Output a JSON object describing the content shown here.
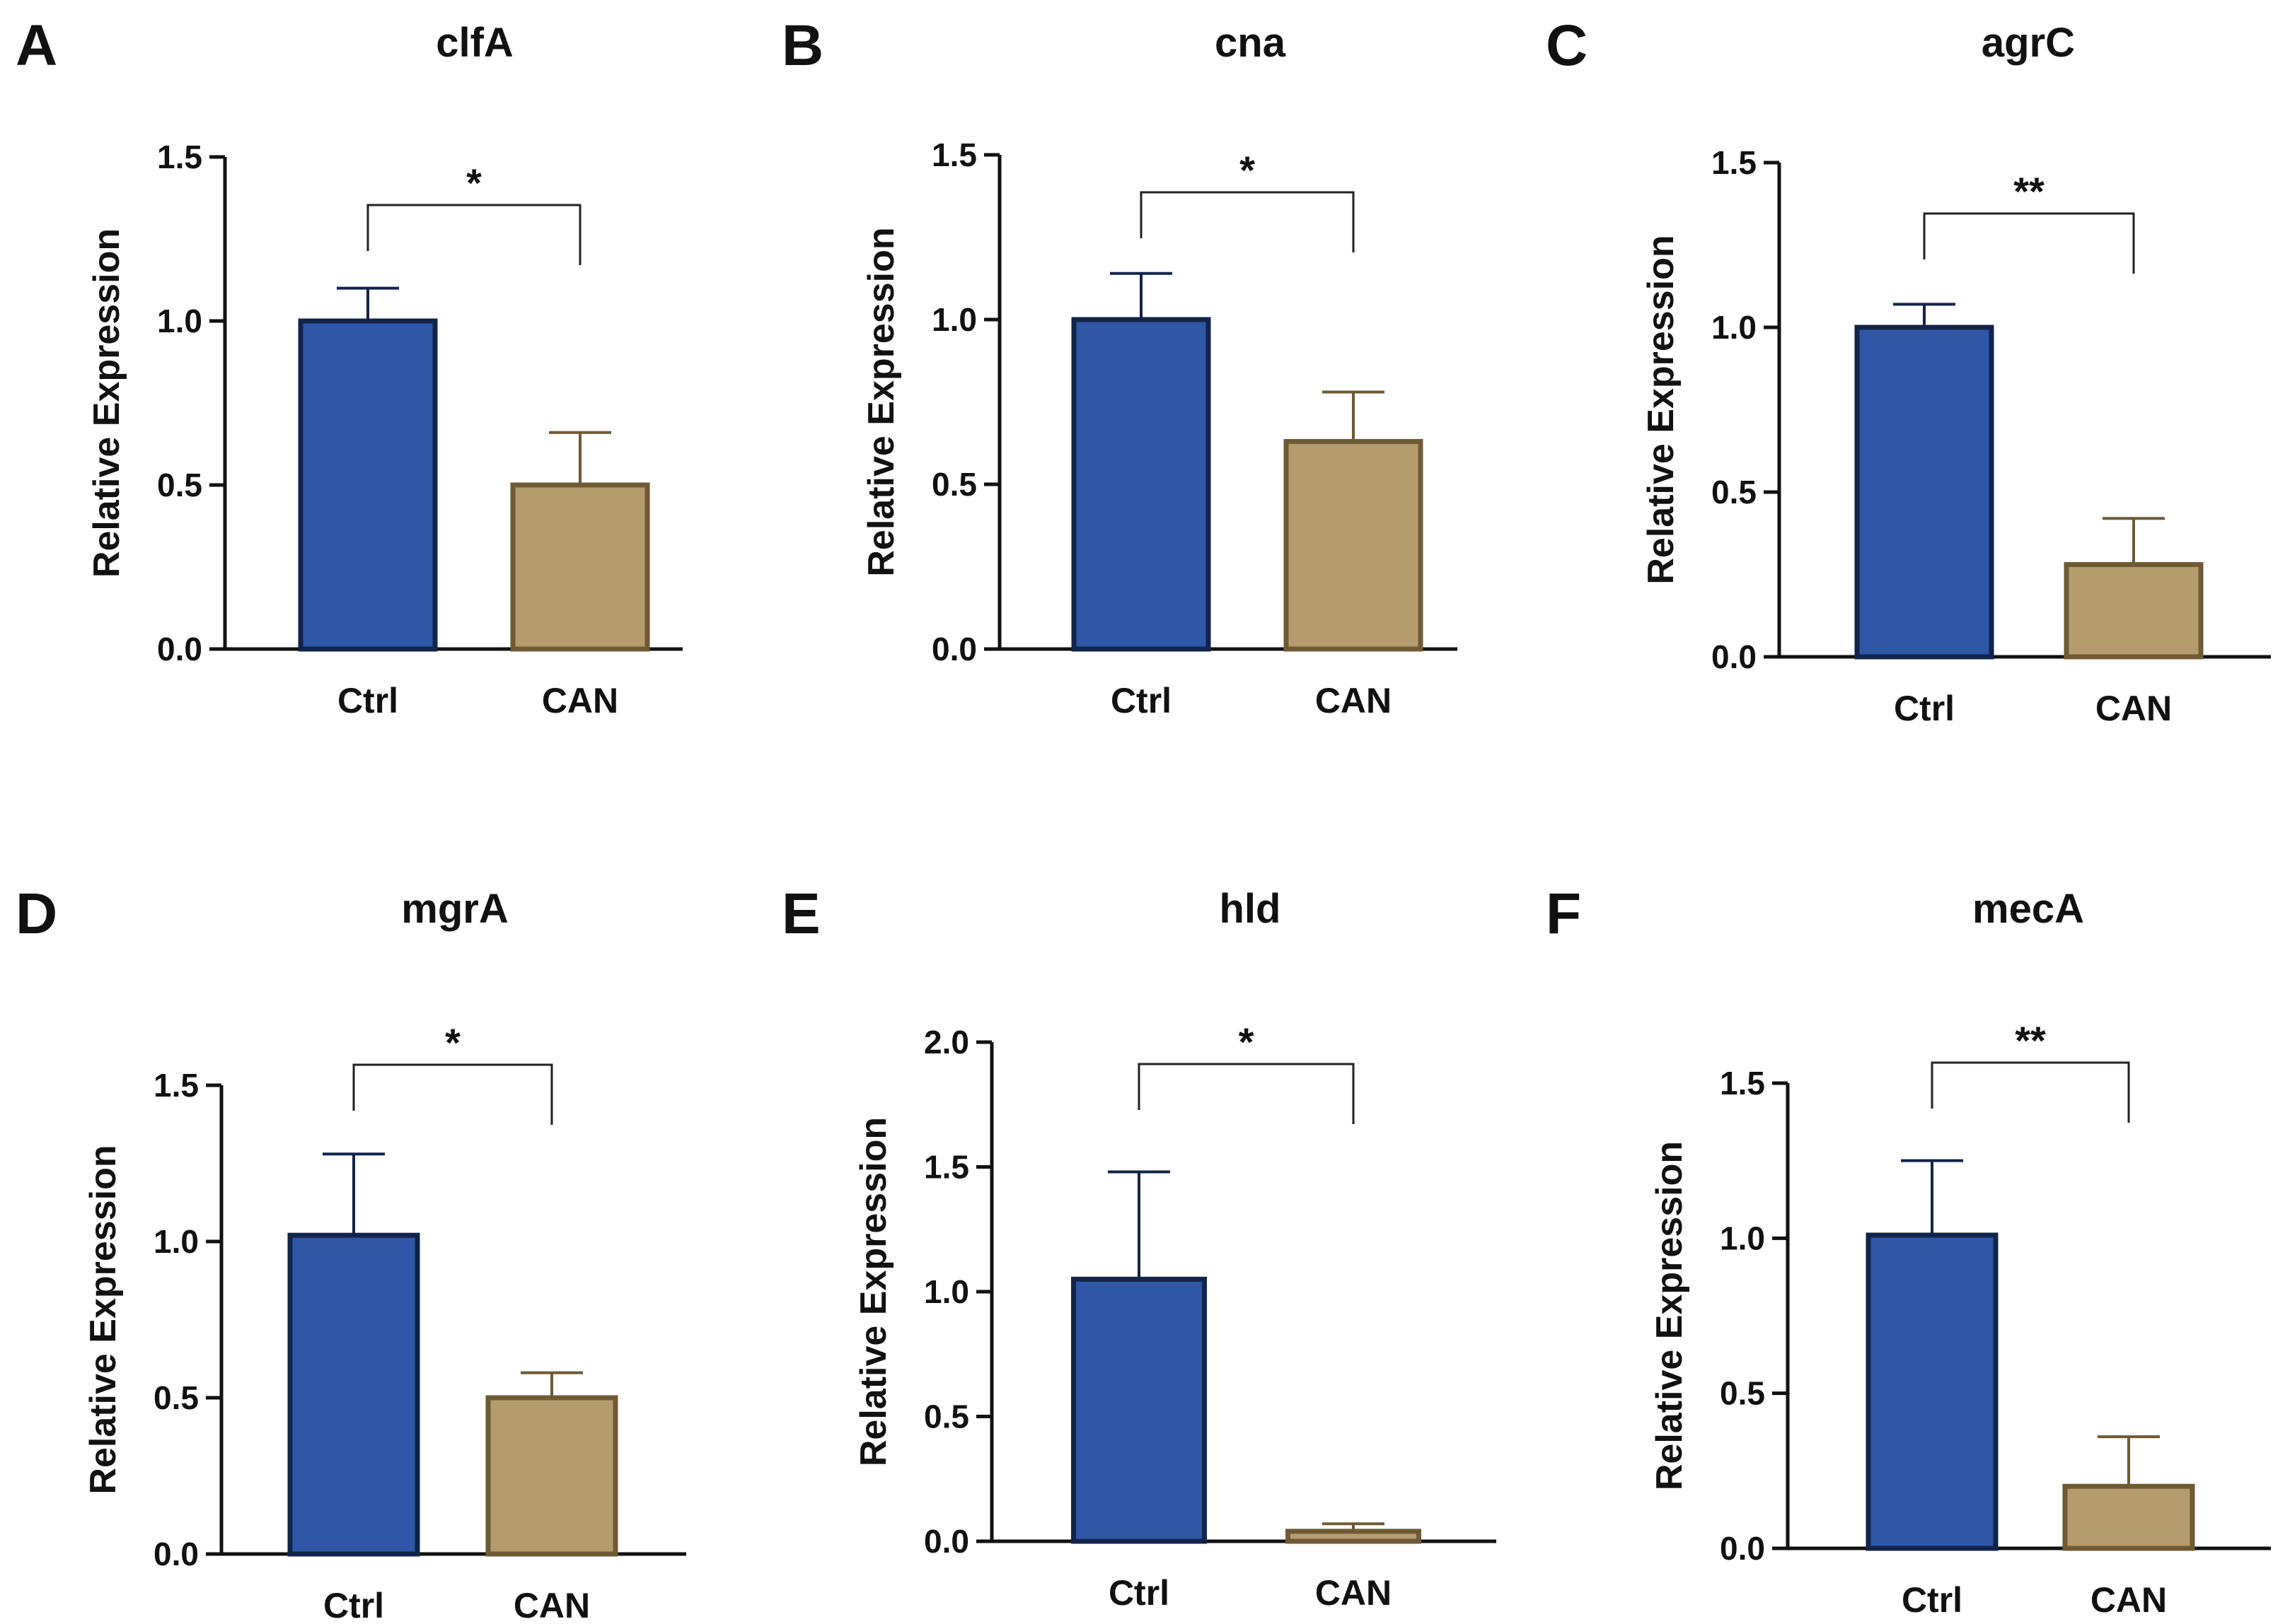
{
  "chart_data": [
    {
      "panel": "A",
      "type": "bar",
      "title": "clfA",
      "ylabel": "Relative Expression",
      "xlabel": "",
      "ylim": [
        0,
        1.5
      ],
      "yticks": [
        "0.0",
        "0.5",
        "1.0",
        "1.5"
      ],
      "categories": [
        "Ctrl",
        "CAN"
      ],
      "values": [
        1.0,
        0.5
      ],
      "errors": [
        0.1,
        0.16
      ],
      "colors": [
        "#2f57a6",
        "#b49c6f"
      ],
      "edge_colors": [
        "#13244a",
        "#6e5a35"
      ],
      "significance": "*"
    },
    {
      "panel": "B",
      "type": "bar",
      "title": "cna",
      "ylabel": "Relative Expression",
      "xlabel": "",
      "ylim": [
        0,
        1.5
      ],
      "yticks": [
        "0.0",
        "0.5",
        "1.0",
        "1.5"
      ],
      "categories": [
        "Ctrl",
        "CAN"
      ],
      "values": [
        1.0,
        0.63
      ],
      "errors": [
        0.14,
        0.15
      ],
      "colors": [
        "#2f57a6",
        "#b49c6f"
      ],
      "edge_colors": [
        "#13244a",
        "#6e5a35"
      ],
      "significance": "*"
    },
    {
      "panel": "C",
      "type": "bar",
      "title": "agrC",
      "ylabel": "Relative Expression",
      "xlabel": "",
      "ylim": [
        0,
        1.5
      ],
      "yticks": [
        "0.0",
        "0.5",
        "1.0",
        "1.5"
      ],
      "categories": [
        "Ctrl",
        "CAN"
      ],
      "values": [
        1.0,
        0.28
      ],
      "errors": [
        0.07,
        0.14
      ],
      "colors": [
        "#2f57a6",
        "#b49c6f"
      ],
      "edge_colors": [
        "#13244a",
        "#6e5a35"
      ],
      "significance": "**"
    },
    {
      "panel": "D",
      "type": "bar",
      "title": "mgrA",
      "ylabel": "Relative Expression",
      "xlabel": "",
      "ylim": [
        0,
        1.5
      ],
      "yticks": [
        "0.0",
        "0.5",
        "1.0",
        "1.5"
      ],
      "categories": [
        "Ctrl",
        "CAN"
      ],
      "values": [
        1.02,
        0.5
      ],
      "errors": [
        0.26,
        0.08
      ],
      "colors": [
        "#2f57a6",
        "#b49c6f"
      ],
      "edge_colors": [
        "#13244a",
        "#6e5a35"
      ],
      "significance": "*"
    },
    {
      "panel": "E",
      "type": "bar",
      "title": "hld",
      "ylabel": "Relative Expression",
      "xlabel": "",
      "ylim": [
        0,
        2.0
      ],
      "yticks": [
        "0.0",
        "0.5",
        "1.0",
        "1.5",
        "2.0"
      ],
      "categories": [
        "Ctrl",
        "CAN"
      ],
      "values": [
        1.05,
        0.04
      ],
      "errors": [
        0.43,
        0.03
      ],
      "colors": [
        "#2f57a6",
        "#b49c6f"
      ],
      "edge_colors": [
        "#13244a",
        "#6e5a35"
      ],
      "significance": "*"
    },
    {
      "panel": "F",
      "type": "bar",
      "title": "mecA",
      "ylabel": "Relative Expression",
      "xlabel": "",
      "ylim": [
        0,
        1.5
      ],
      "yticks": [
        "0.0",
        "0.5",
        "1.0",
        "1.5"
      ],
      "categories": [
        "Ctrl",
        "CAN"
      ],
      "values": [
        1.01,
        0.2
      ],
      "errors": [
        0.24,
        0.16
      ],
      "colors": [
        "#2f57a6",
        "#b49c6f"
      ],
      "edge_colors": [
        "#13244a",
        "#6e5a35"
      ],
      "significance": "**"
    }
  ]
}
